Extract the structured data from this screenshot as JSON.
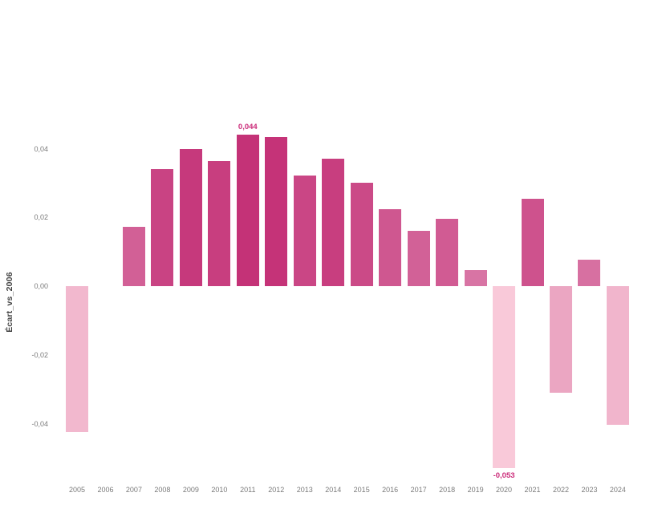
{
  "chart_data": {
    "type": "bar",
    "title": "",
    "xlabel": "",
    "ylabel": "Écart_vs_2006",
    "categories": [
      "2005",
      "2006",
      "2007",
      "2008",
      "2009",
      "2010",
      "2011",
      "2012",
      "2013",
      "2014",
      "2015",
      "2016",
      "2017",
      "2018",
      "2019",
      "2020",
      "2021",
      "2022",
      "2023",
      "2024"
    ],
    "values": [
      -0.0425,
      0,
      0.0173,
      0.0341,
      0.0398,
      0.0365,
      0.044,
      0.0433,
      0.0321,
      0.037,
      0.0302,
      0.0225,
      0.0162,
      0.0195,
      0.0047,
      -0.053,
      0.0255,
      -0.031,
      0.0077,
      -0.0403
    ],
    "colors": [
      "#f2b8ce",
      null,
      "#d26096",
      "#c94383",
      "#c6397c",
      "#c83e7f",
      "#c43277",
      "#c53378",
      "#ca4685",
      "#c83e7f",
      "#cb4a87",
      "#cf5790",
      "#d26197",
      "#d15b93",
      "#d874a4",
      "#f9c9d9",
      "#ce528d",
      "#eba6c2",
      "#d770a1",
      "#f1b5cc"
    ],
    "ylim": [
      -0.062,
      0.052
    ],
    "grid": false,
    "legend": null,
    "yticks": [
      {
        "label": "0,04",
        "value": 0.04
      },
      {
        "label": "0,02",
        "value": 0.02
      },
      {
        "label": "0,00",
        "value": 0.0
      },
      {
        "label": "-0,02",
        "value": -0.02
      },
      {
        "label": "-0,04",
        "value": -0.04
      }
    ],
    "data_labels": [
      {
        "category": "2011",
        "text": "0,044",
        "position": "above"
      },
      {
        "category": "2020",
        "text": "-0,053",
        "position": "below"
      }
    ]
  },
  "style": {
    "tick_color": "#7a7a7a",
    "axis_title_color": "#404040",
    "data_label_color": "#cb2b79",
    "background": "#ffffff"
  }
}
